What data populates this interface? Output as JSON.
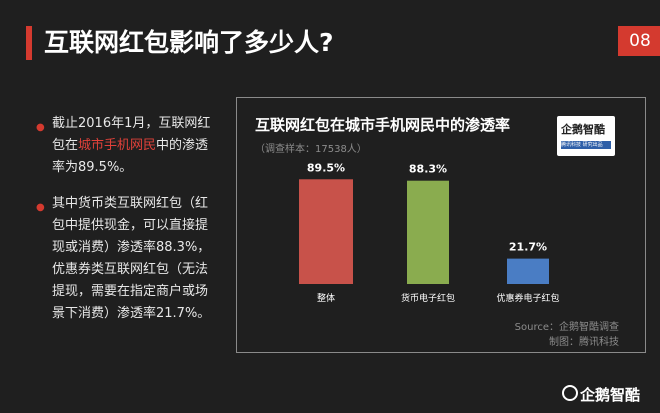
{
  "header": {
    "title": "互联网红包影响了多少人?",
    "page_number": "08"
  },
  "bullets": [
    {
      "pre": "截止2016年1月，互联网红包在",
      "highlight": "城市手机网民",
      "post": "中的渗透率为89.5%。"
    },
    {
      "pre": "其中货币类互联网红包（红包中提供现金，可以直接提现或消费）渗透率88.3%，优惠券类互联网红包（无法提现，需要在指定商户或场景下消费）渗透率21.7%。",
      "highlight": "",
      "post": ""
    }
  ],
  "panel": {
    "title": "互联网红包在城市手机网民中的渗透率",
    "subtitle": "（调查样本：17538人）",
    "brand_top": "企鹅智酷",
    "brand_strip": "腾讯科技 研究出品",
    "source_line1": "Source：企鹅智酷调查",
    "source_line2": "制图：腾讯科技"
  },
  "footer": {
    "logo_text": "企鹅智酷"
  },
  "chart_data": {
    "type": "bar",
    "title": "互联网红包在城市手机网民中的渗透率",
    "subtitle": "（调查样本：17538人）",
    "categories": [
      "整体",
      "货币电子红包",
      "优惠券电子红包"
    ],
    "values": [
      89.5,
      88.3,
      21.7
    ],
    "value_labels": [
      "89.5%",
      "88.3%",
      "21.7%"
    ],
    "colors": [
      "#c8524a",
      "#8aac4f",
      "#4a7dc4"
    ],
    "ylim": [
      0,
      100
    ],
    "grid": false,
    "legend": "none"
  }
}
